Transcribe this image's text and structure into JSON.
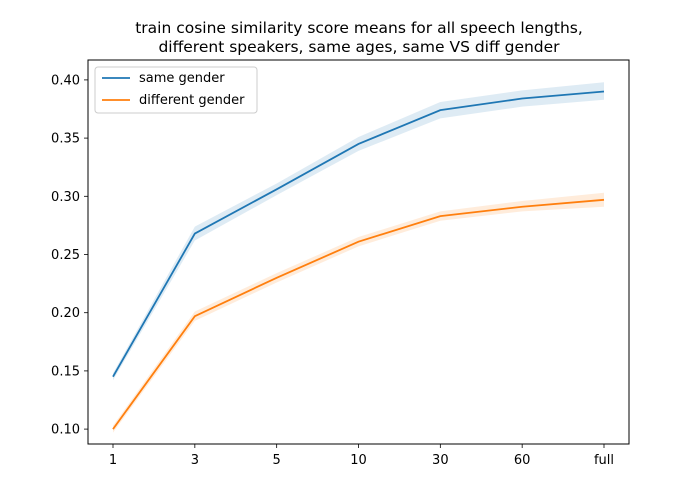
{
  "chart_data": {
    "type": "line",
    "title_lines": [
      "train cosine similarity score means for all speech lengths,",
      "different speakers, same ages, same VS diff gender"
    ],
    "xlabel": "",
    "ylabel": "",
    "categories": [
      "1",
      "3",
      "5",
      "10",
      "30",
      "60",
      "full"
    ],
    "yticks": [
      "0.10",
      "0.15",
      "0.20",
      "0.25",
      "0.30",
      "0.35",
      "0.40"
    ],
    "ylim": [
      0.0872,
      0.4171
    ],
    "grid": false,
    "legend_position": "top-left",
    "series": [
      {
        "name": "same gender",
        "color": "#1f77b4",
        "values": [
          0.145,
          0.268,
          0.306,
          0.345,
          0.374,
          0.384,
          0.39
        ],
        "lower": [
          0.142,
          0.262,
          0.301,
          0.339,
          0.367,
          0.377,
          0.383
        ],
        "upper": [
          0.148,
          0.274,
          0.311,
          0.351,
          0.381,
          0.391,
          0.398
        ]
      },
      {
        "name": "different gender",
        "color": "#ff7f0e",
        "values": [
          0.1,
          0.197,
          0.23,
          0.261,
          0.283,
          0.291,
          0.297
        ],
        "lower": [
          0.097,
          0.193,
          0.226,
          0.257,
          0.279,
          0.287,
          0.291
        ],
        "upper": [
          0.103,
          0.201,
          0.234,
          0.265,
          0.287,
          0.296,
          0.303
        ]
      }
    ]
  }
}
